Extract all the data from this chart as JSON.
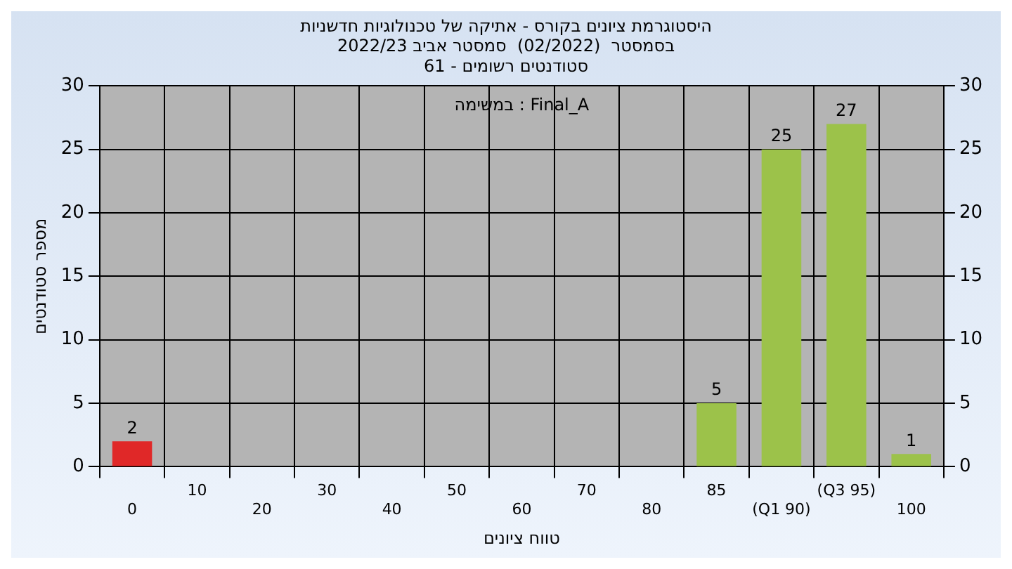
{
  "chart_data": {
    "type": "bar",
    "title": "היסטוגרמת ציונים בקורס - אתיקה של טכנולוגיות חדשניות",
    "subtitle": "בסמסטר  (02/2022)  סמסטר אביב 2022/23\nסטודנטים רשומים - 61",
    "xlabel": "טווח ציונים",
    "ylabel": "מספר סטודנטים",
    "annotations": [
      "Final_A : במשימה"
    ],
    "categories": [
      "0",
      "10",
      "20",
      "30",
      "40",
      "50",
      "60",
      "70",
      "80",
      "85",
      "(Q1 90)",
      "(Q3 95)",
      "100"
    ],
    "values": [
      2,
      0,
      0,
      0,
      0,
      0,
      0,
      0,
      0,
      5,
      25,
      27,
      1
    ],
    "value_labels": [
      "2",
      null,
      null,
      null,
      null,
      null,
      null,
      null,
      null,
      "5",
      "25",
      "27",
      "1"
    ],
    "colors": [
      "#e02828",
      "#9cc24a",
      "#9cc24a",
      "#9cc24a",
      "#9cc24a",
      "#9cc24a",
      "#9cc24a",
      "#9cc24a",
      "#9cc24a",
      "#9cc24a",
      "#9cc24a",
      "#9cc24a",
      "#9cc24a"
    ],
    "ylim": [
      0,
      30
    ],
    "yticks": [
      0,
      5,
      10,
      15,
      20,
      25,
      30
    ],
    "y2lim": [
      0,
      30
    ],
    "y2ticks": [
      0,
      5,
      10,
      15,
      20,
      25,
      30
    ],
    "grid": true,
    "legend": false
  }
}
